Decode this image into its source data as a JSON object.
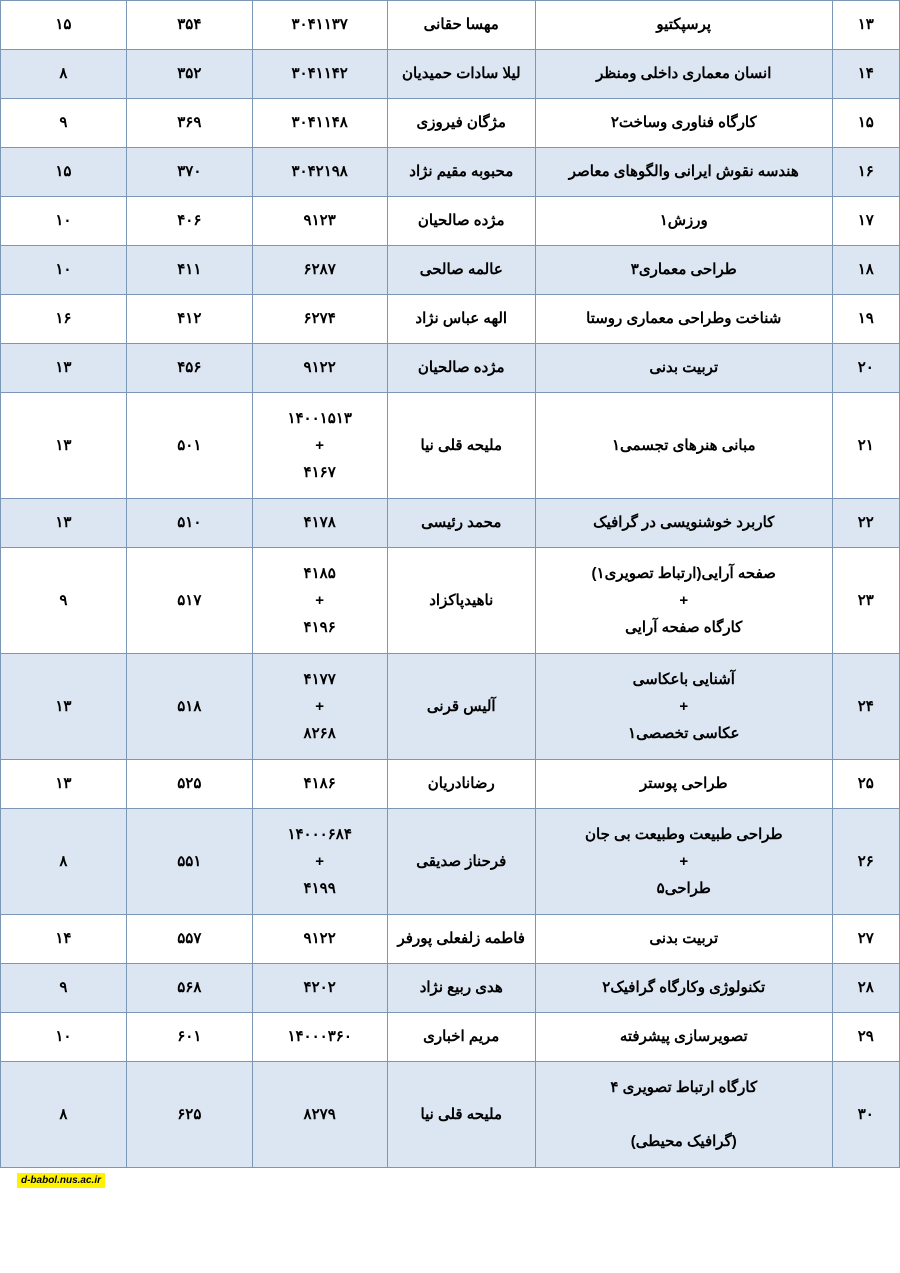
{
  "table": {
    "row_alt_bg": "#dce6f2",
    "row_bg": "#ffffff",
    "border_color": "#7c96b5",
    "text_color": "#000000",
    "columns_rtl_order": [
      "index",
      "course",
      "instructor",
      "code",
      "class",
      "count"
    ],
    "column_widths": {
      "index": "7.5%",
      "course": "33%",
      "instructor": "16.5%",
      "code": "15%",
      "class": "14%",
      "count": "14%"
    },
    "rows": [
      {
        "index": "۱۳",
        "course": "پرسپکتیو",
        "instructor": "مهسا حقانی",
        "code": "۳۰۴۱۱۳۷",
        "class": "۳۵۴",
        "count": "۱۵",
        "alt": false
      },
      {
        "index": "۱۴",
        "course": "انسان معماری داخلی ومنظر",
        "instructor": "لیلا سادات حمیدیان",
        "code": "۳۰۴۱۱۴۲",
        "class": "۳۵۲",
        "count": "۸",
        "alt": true
      },
      {
        "index": "۱۵",
        "course": "کارگاه فناوری وساخت۲",
        "instructor": "مژگان فیروزی",
        "code": "۳۰۴۱۱۴۸",
        "class": "۳۶۹",
        "count": "۹",
        "alt": false
      },
      {
        "index": "۱۶",
        "course": "هندسه نقوش ایرانی والگوهای معاصر",
        "instructor": "محبوبه مقیم نژاد",
        "code": "۳۰۴۲۱۹۸",
        "class": "۳۷۰",
        "count": "۱۵",
        "alt": true
      },
      {
        "index": "۱۷",
        "course": "ورزش۱",
        "instructor": "مژده صالحیان",
        "code": "۹۱۲۳",
        "class": "۴۰۶",
        "count": "۱۰",
        "alt": false
      },
      {
        "index": "۱۸",
        "course": "طراحی معماری۳",
        "instructor": "عالمه صالحی",
        "code": "۶۲۸۷",
        "class": "۴۱۱",
        "count": "۱۰",
        "alt": true
      },
      {
        "index": "۱۹",
        "course": "شناخت وطراحی معماری روستا",
        "instructor": "الهه عباس نژاد",
        "code": "۶۲۷۴",
        "class": "۴۱۲",
        "count": "۱۶",
        "alt": false
      },
      {
        "index": "۲۰",
        "course": "تربیت بدنی",
        "instructor": "مژده صالحیان",
        "code": "۹۱۲۲",
        "class": "۴۵۶",
        "count": "۱۳",
        "alt": true
      },
      {
        "index": "۲۱",
        "course": "مبانی هنرهای تجسمی۱",
        "instructor": "ملیحه قلی نیا",
        "code": "۱۴۰۰۱۵۱۳\n+\n۴۱۶۷",
        "class": "۵۰۱",
        "count": "۱۳",
        "alt": false
      },
      {
        "index": "۲۲",
        "course": "کاربرد خوشنویسی در گرافیک",
        "instructor": "محمد رئیسی",
        "code": "۴۱۷۸",
        "class": "۵۱۰",
        "count": "۱۳",
        "alt": true
      },
      {
        "index": "۲۳",
        "course": "صفحه آرایی(ارتباط تصویری۱)\n+\nکارگاه صفحه آرایی",
        "instructor": "ناهیدپاکزاد",
        "code": "۴۱۸۵\n+\n۴۱۹۶",
        "class": "۵۱۷",
        "count": "۹",
        "alt": false
      },
      {
        "index": "۲۴",
        "course": "آشنایی باعکاسی\n+\nعکاسی تخصصی۱",
        "instructor": "آلیس قرنی",
        "code": "۴۱۷۷\n+\n۸۲۶۸",
        "class": "۵۱۸",
        "count": "۱۳",
        "alt": true
      },
      {
        "index": "۲۵",
        "course": "طراحی پوستر",
        "instructor": "رضانادریان",
        "code": "۴۱۸۶",
        "class": "۵۲۵",
        "count": "۱۳",
        "alt": false
      },
      {
        "index": "۲۶",
        "course": "طراحی طبیعت وطبیعت بی جان\n+\nطراحی۵",
        "instructor": "فرحناز صدیقی",
        "code": "۱۴۰۰۰۶۸۴\n+\n۴۱۹۹",
        "class": "۵۵۱",
        "count": "۸",
        "alt": true
      },
      {
        "index": "۲۷",
        "course": "تربیت بدنی",
        "instructor": "فاطمه زلفعلی پورفر",
        "code": "۹۱۲۲",
        "class": "۵۵۷",
        "count": "۱۴",
        "alt": false
      },
      {
        "index": "۲۸",
        "course": "تکنولوژی وکارگاه گرافیک۲",
        "instructor": "هدی ربیع نژاد",
        "code": "۴۲۰۲",
        "class": "۵۶۸",
        "count": "۹",
        "alt": true
      },
      {
        "index": "۲۹",
        "course": "تصویرسازی پیشرفته",
        "instructor": "مریم اخباری",
        "code": "۱۴۰۰۰۳۶۰",
        "class": "۶۰۱",
        "count": "۱۰",
        "alt": false
      },
      {
        "index": "۳۰",
        "course": "کارگاه ارتباط تصویری ۴\n\n(گرافیک محیطی)",
        "instructor": "ملیحه قلی نیا",
        "code": "۸۲۷۹",
        "class": "۶۲۵",
        "count": "۸",
        "alt": true
      }
    ]
  },
  "footer": {
    "site_label": "d-babol.nus.ac.ir",
    "badge_bg": "#fff200",
    "badge_text_color": "#000000"
  }
}
